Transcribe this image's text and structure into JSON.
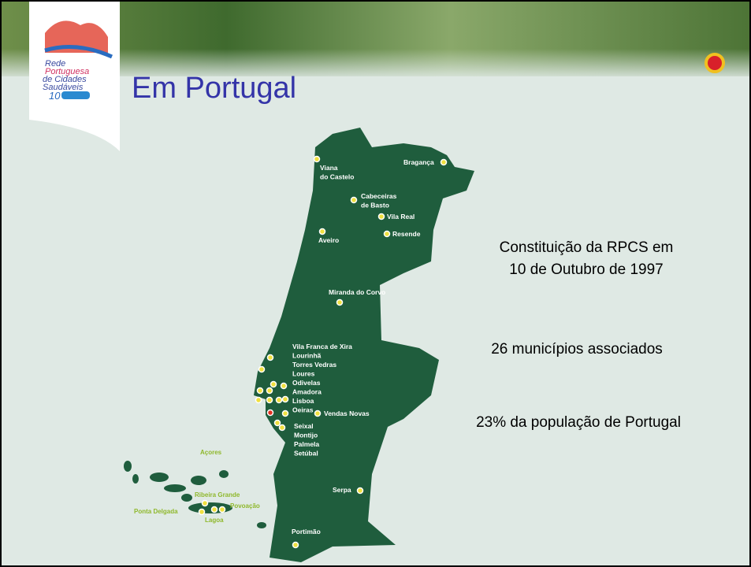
{
  "logo": {
    "lines": [
      "Rede",
      "Portuguesa",
      "de Cidades",
      "Saudáveis"
    ],
    "badge": "10"
  },
  "title": "Em Portugal",
  "map_labels": [
    {
      "lines": [
        "Viana",
        "do Castelo"
      ]
    },
    {
      "lines": [
        "Bragança"
      ]
    },
    {
      "lines": [
        "Cabeceiras",
        "de Basto"
      ]
    },
    {
      "lines": [
        "Vila Real"
      ]
    },
    {
      "lines": [
        "Aveiro"
      ]
    },
    {
      "lines": [
        "Resende"
      ]
    },
    {
      "lines": [
        "Miranda do Corvo"
      ]
    },
    {
      "lines": [
        "Vila Franca de Xira",
        "Lourinhã",
        "Torres Vedras",
        "Loures",
        "Odivelas",
        "Amadora",
        "Lisboa",
        "Oeiras"
      ]
    },
    {
      "lines": [
        "Vendas Novas"
      ]
    },
    {
      "lines": [
        "Seixal",
        "Montijo",
        "Palmela",
        "Setúbal"
      ]
    },
    {
      "lines": [
        "Serpa"
      ]
    },
    {
      "lines": [
        "Portimão"
      ]
    }
  ],
  "azores_labels": [
    "Açores",
    "Ribeira Grande",
    "Povoação",
    "Ponta Delgada",
    "Lagoa"
  ],
  "facts": [
    [
      "Constituição da RPCS em",
      "10 de Outubro de 1997"
    ],
    [
      "26 municípios associados"
    ],
    [
      "23% da população de Portugal"
    ]
  ]
}
